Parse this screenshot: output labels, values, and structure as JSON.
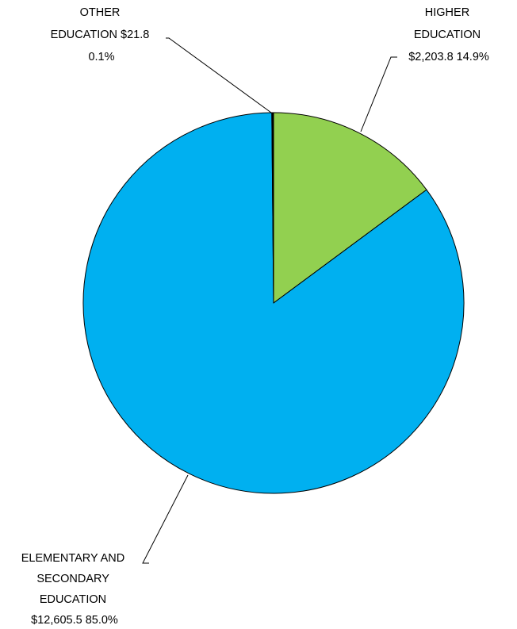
{
  "chart_data": {
    "type": "pie",
    "title": "",
    "slices": [
      {
        "name": "HIGHER EDUCATION",
        "value": 2203.8,
        "percent": 14.9,
        "color": "#92d050",
        "label_lines": [
          "HIGHER",
          "EDUCATION",
          "$2,203.8  14.9%"
        ]
      },
      {
        "name": "ELEMENTARY AND SECONDARY EDUCATION",
        "value": 12605.5,
        "percent": 85.0,
        "color": "#00b0f0",
        "label_lines": [
          "ELEMENTARY AND",
          "SECONDARY",
          "EDUCATION",
          "$12,605.5  85.0%"
        ]
      },
      {
        "name": "OTHER EDUCATION",
        "value": 21.8,
        "percent": 0.1,
        "color": "#000000",
        "label_lines": [
          "OTHER",
          "EDUCATION  $21.8",
          "0.1%"
        ]
      }
    ]
  }
}
